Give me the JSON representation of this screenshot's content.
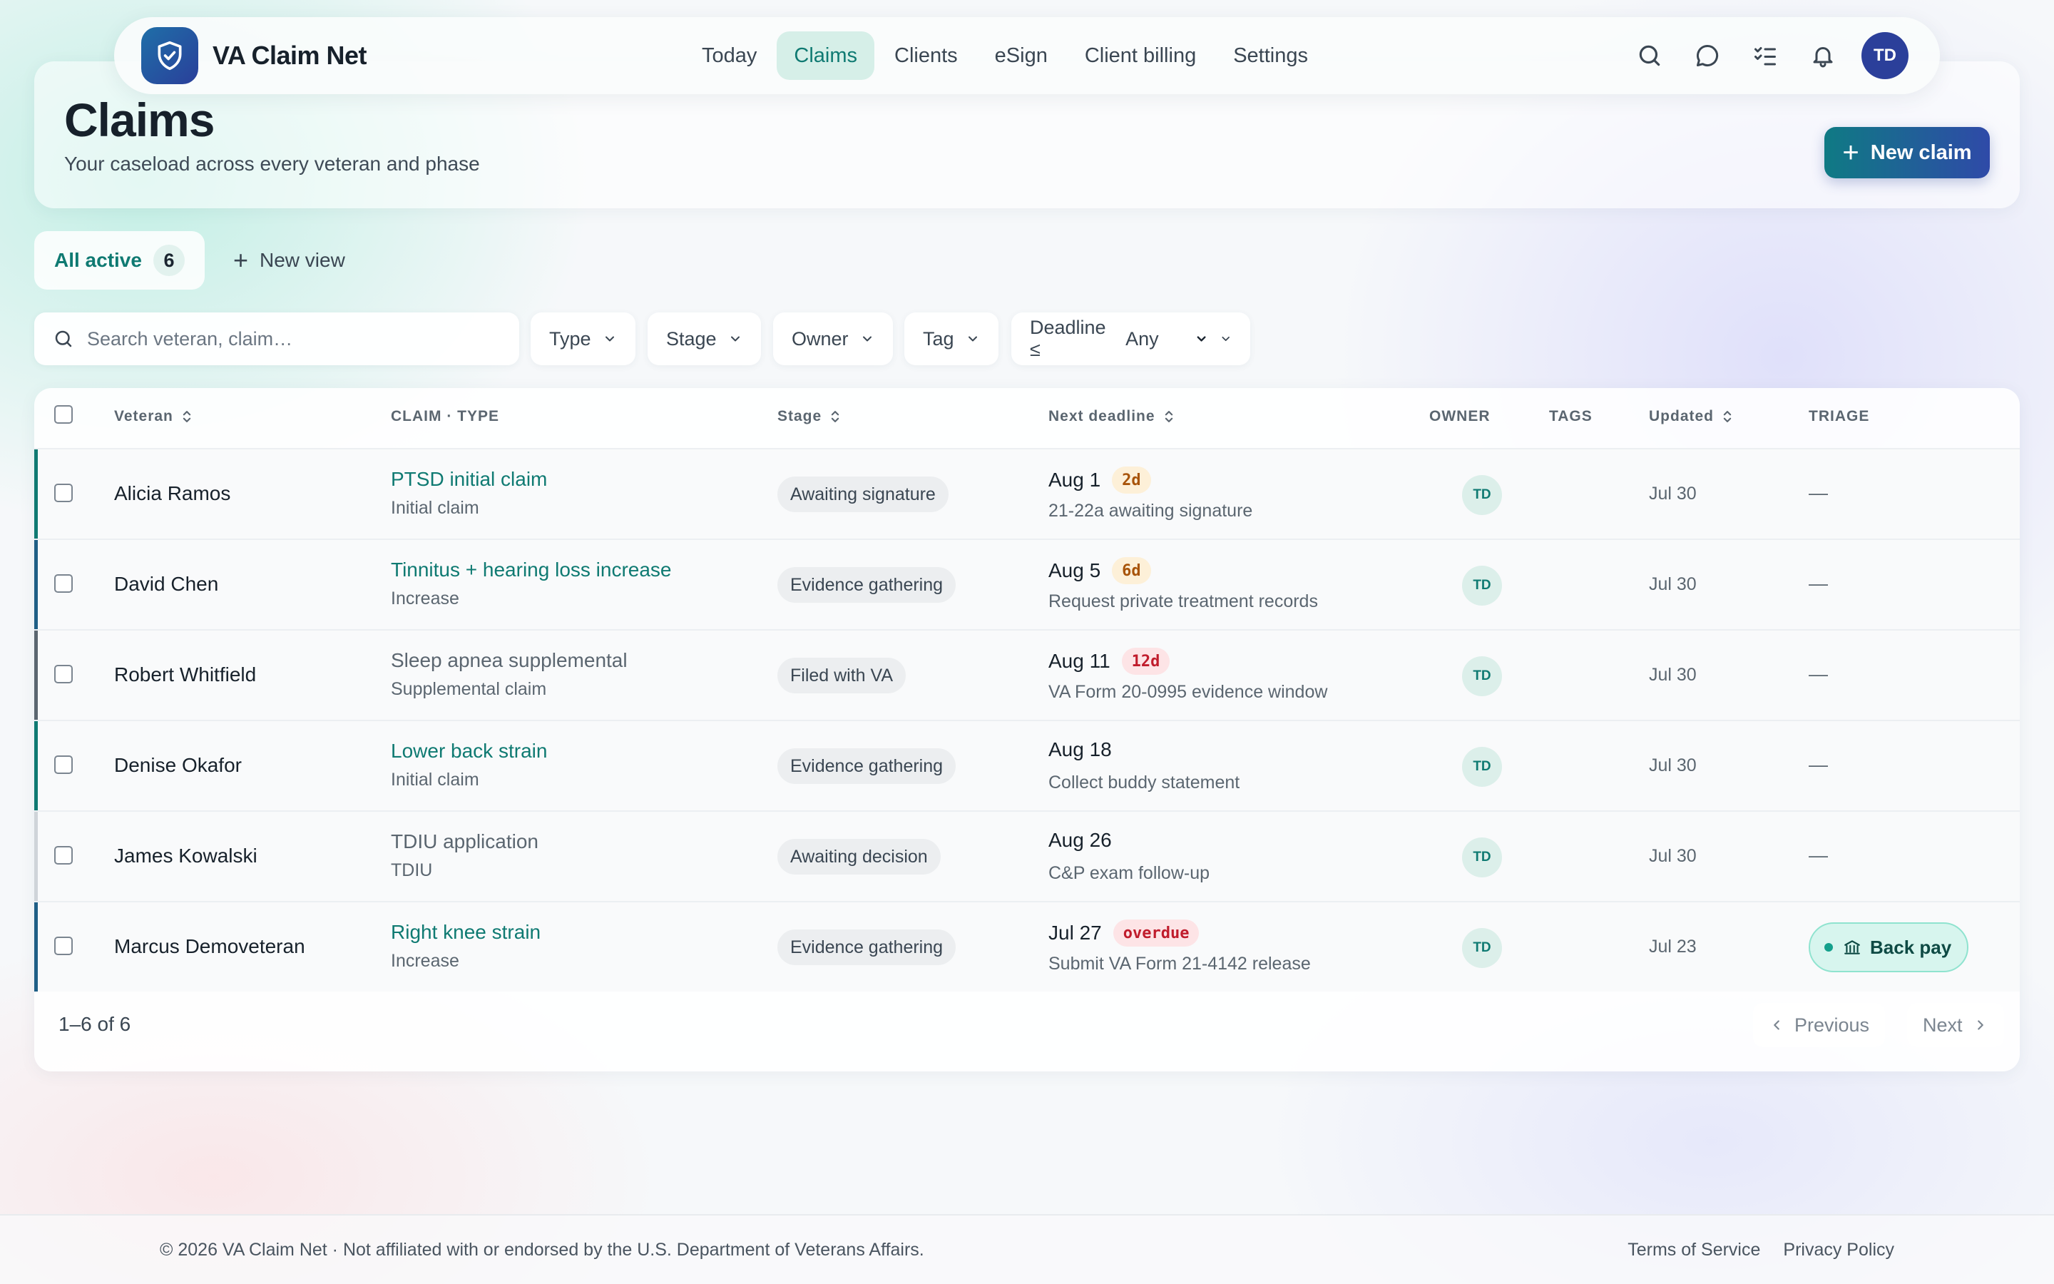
{
  "app": {
    "name": "VA Claim Net",
    "user_initials": "TD"
  },
  "nav": {
    "items": [
      {
        "label": "Today",
        "active": false
      },
      {
        "label": "Claims",
        "active": true
      },
      {
        "label": "Clients",
        "active": false
      },
      {
        "label": "eSign",
        "active": false
      },
      {
        "label": "Client billing",
        "active": false
      },
      {
        "label": "Settings",
        "active": false
      }
    ],
    "tools": [
      "search-icon",
      "chat-icon",
      "checklist-icon",
      "bell-icon"
    ]
  },
  "header": {
    "title": "Claims",
    "subtitle": "Your caseload across every veteran and phase",
    "new_claim_label": "New claim"
  },
  "views": {
    "active_label": "All active",
    "active_count": "6",
    "new_view_label": "New view"
  },
  "filters": {
    "search_placeholder": "Search veteran, claim…",
    "type_label": "Type",
    "stage_label": "Stage",
    "owner_label": "Owner",
    "tag_label": "Tag",
    "deadline_label": "Deadline ≤",
    "deadline_value": "Any"
  },
  "table": {
    "columns": {
      "veteran": "Veteran",
      "claim_type": "CLAIM · TYPE",
      "stage": "Stage",
      "next_deadline": "Next deadline",
      "owner": "OWNER",
      "tags": "TAGS",
      "updated": "Updated",
      "triage": "TRIAGE"
    },
    "rows": [
      {
        "veteran": "Alicia Ramos",
        "claim_title": "PTSD initial claim",
        "claim_type": "Initial claim",
        "title_style": "link",
        "accent": "#0f7a72",
        "stage": "Awaiting signature",
        "deadline_date": "Aug 1",
        "deadline_badge": "2d",
        "badge_style": "warn",
        "deadline_note": "21-22a awaiting signature",
        "owner": "TD",
        "updated": "Jul 30",
        "triage": "—"
      },
      {
        "veteran": "David Chen",
        "claim_title": "Tinnitus + hearing loss increase",
        "claim_type": "Increase",
        "title_style": "link",
        "accent": "#1f5f86",
        "stage": "Evidence gathering",
        "deadline_date": "Aug 5",
        "deadline_badge": "6d",
        "badge_style": "warn",
        "deadline_note": "Request private treatment records",
        "owner": "TD",
        "updated": "Jul 30",
        "triage": "—"
      },
      {
        "veteran": "Robert Whitfield",
        "claim_title": "Sleep apnea supplemental",
        "claim_type": "Supplemental claim",
        "title_style": "plain",
        "accent": "#5b6670",
        "stage": "Filed with VA",
        "deadline_date": "Aug 11",
        "deadline_badge": "12d",
        "badge_style": "overdue",
        "deadline_note": "VA Form 20-0995 evidence window",
        "owner": "TD",
        "updated": "Jul 30",
        "triage": "—"
      },
      {
        "veteran": "Denise Okafor",
        "claim_title": "Lower back strain",
        "claim_type": "Initial claim",
        "title_style": "link",
        "accent": "#0f7a72",
        "stage": "Evidence gathering",
        "deadline_date": "Aug 18",
        "deadline_badge": "",
        "badge_style": "none",
        "deadline_note": "Collect buddy statement",
        "owner": "TD",
        "updated": "Jul 30",
        "triage": "—"
      },
      {
        "veteran": "James Kowalski",
        "claim_title": "TDIU application",
        "claim_type": "TDIU",
        "title_style": "plain",
        "accent": "#cfd4d9",
        "stage": "Awaiting decision",
        "deadline_date": "Aug 26",
        "deadline_badge": "",
        "badge_style": "none",
        "deadline_note": "C&P exam follow-up",
        "owner": "TD",
        "updated": "Jul 30",
        "triage": "—"
      },
      {
        "veteran": "Marcus Demoveteran",
        "claim_title": "Right knee strain",
        "claim_type": "Increase",
        "title_style": "link",
        "accent": "#1f5f86",
        "stage": "Evidence gathering",
        "deadline_date": "Jul 27",
        "deadline_badge": "overdue",
        "badge_style": "overdue",
        "deadline_note": "Submit VA Form 21-4142 release",
        "owner": "TD",
        "updated": "Jul 23",
        "triage": "Back pay"
      }
    ]
  },
  "pager": {
    "range": "1–6 of 6",
    "previous_label": "Previous",
    "next_label": "Next"
  },
  "footer": {
    "notice": "© 2026 VA Claim Net · Not affiliated with or endorsed by the U.S. Department of Veterans Affairs.",
    "terms_label": "Terms of Service",
    "privacy_label": "Privacy Policy"
  },
  "colors": {
    "accent": "#0f7a72",
    "brand": "#2b3f9a",
    "overdue": "#c01c2c",
    "warn": "#a8540a"
  }
}
